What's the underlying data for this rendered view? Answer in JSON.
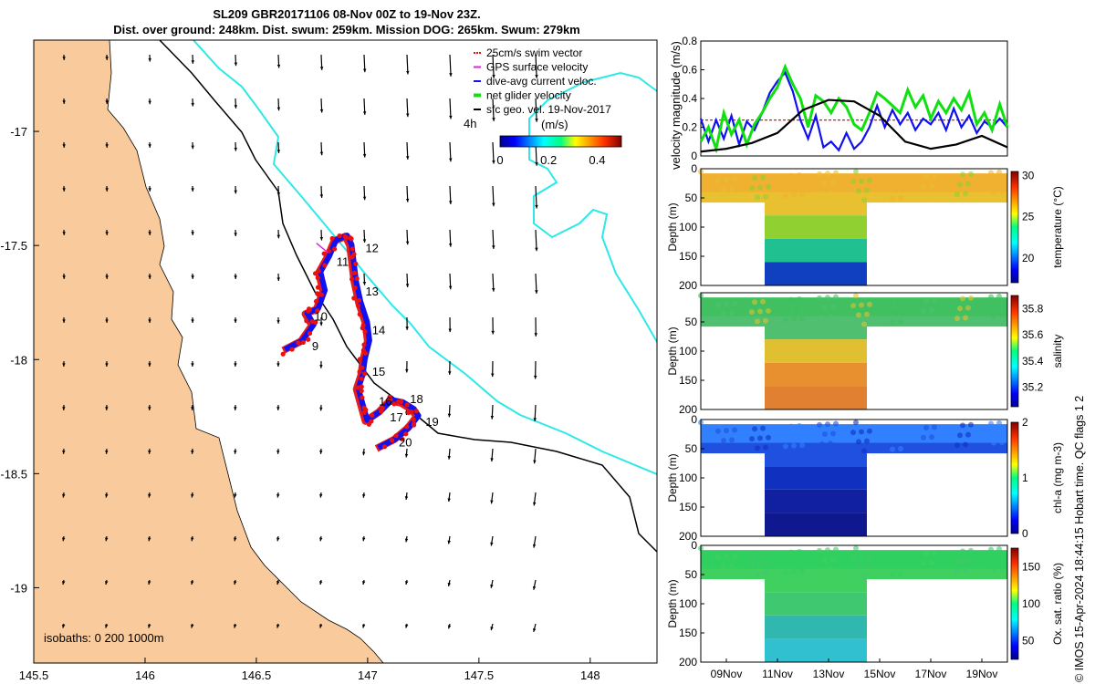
{
  "title_line1": "SL209 GBR20171106 08-Nov 00Z to 19-Nov 23Z.",
  "title_line2": "Dist. over ground: 248km. Dist. swum: 259km. Mission DOG: 265km. Swum: 279km",
  "footnote": "© IMOS 15-Apr-2024 18:44:15 Hobart time. QC flags 1  2",
  "colors": {
    "land": "#f9cb9c",
    "isobath_200": "#000000",
    "isobath_1000": "#2ee8e8",
    "swim_vector": "#e81010",
    "gps_velocity": "#e020e0",
    "current": "#1010f0",
    "net_velocity": "#10e010",
    "geo_velocity": "#000000"
  },
  "legend": {
    "items": [
      {
        "label": "25cm/s swim vector",
        "color": "#e81010"
      },
      {
        "label": "GPS surface velocity",
        "color": "#e020e0"
      },
      {
        "label": "dive-avg current veloc.",
        "color": "#1010f0"
      },
      {
        "label": "net glider velocity",
        "color": "#10e010"
      },
      {
        "label": "sfc geo. vel. 19-Nov-2017",
        "color": "#000000"
      }
    ],
    "time_label": "4h",
    "colorbar_title": "(m/s)",
    "colorbar_ticks": [
      "0",
      "0.2",
      "0.4"
    ]
  },
  "isobaths_label": "isobaths: 0   200  1000m",
  "chart_data": [
    {
      "type": "map",
      "x_ticks": [
        "145.5",
        "146",
        "146.5",
        "147",
        "147.5",
        "148"
      ],
      "y_ticks": [
        "-17",
        "-17.5",
        "-18",
        "-18.5",
        "-19"
      ],
      "xlim": [
        145.5,
        148.3
      ],
      "ylim": [
        -19.33,
        -16.6
      ],
      "day_labels": [
        {
          "label": "9",
          "lon": 146.75,
          "lat": -17.96
        },
        {
          "label": "10",
          "lon": 146.76,
          "lat": -17.83
        },
        {
          "label": "11",
          "lon": 146.86,
          "lat": -17.59
        },
        {
          "label": "12",
          "lon": 146.99,
          "lat": -17.53
        },
        {
          "label": "13",
          "lon": 146.99,
          "lat": -17.72
        },
        {
          "label": "14",
          "lon": 147.02,
          "lat": -17.89
        },
        {
          "label": "15",
          "lon": 147.02,
          "lat": -18.07
        },
        {
          "label": "16",
          "lon": 147.05,
          "lat": -18.2
        },
        {
          "label": "17",
          "lon": 147.1,
          "lat": -18.27
        },
        {
          "label": "18",
          "lon": 147.19,
          "lat": -18.19
        },
        {
          "label": "19",
          "lon": 147.26,
          "lat": -18.29
        },
        {
          "label": "20",
          "lon": 147.14,
          "lat": -18.38
        }
      ],
      "glider_track": [
        [
          146.62,
          -17.96
        ],
        [
          146.7,
          -17.92
        ],
        [
          146.75,
          -17.85
        ],
        [
          146.72,
          -17.8
        ],
        [
          146.77,
          -17.78
        ],
        [
          146.8,
          -17.7
        ],
        [
          146.78,
          -17.62
        ],
        [
          146.82,
          -17.55
        ],
        [
          146.85,
          -17.48
        ],
        [
          146.9,
          -17.46
        ],
        [
          146.92,
          -17.5
        ],
        [
          146.93,
          -17.58
        ],
        [
          146.94,
          -17.66
        ],
        [
          146.96,
          -17.75
        ],
        [
          146.99,
          -17.84
        ],
        [
          147.0,
          -17.92
        ],
        [
          146.98,
          -18.0
        ],
        [
          146.97,
          -18.07
        ],
        [
          146.95,
          -18.13
        ],
        [
          146.97,
          -18.2
        ],
        [
          146.99,
          -18.27
        ],
        [
          147.05,
          -18.23
        ],
        [
          147.1,
          -18.18
        ],
        [
          147.15,
          -18.19
        ],
        [
          147.2,
          -18.22
        ],
        [
          147.22,
          -18.25
        ],
        [
          147.18,
          -18.3
        ],
        [
          147.12,
          -18.35
        ],
        [
          147.04,
          -18.39
        ]
      ]
    },
    {
      "type": "line",
      "ylabel": "velocity magnitude (m/s)",
      "ylim": [
        0,
        0.8
      ],
      "y_ticks": [
        "0",
        "0.2",
        "0.4",
        "0.6",
        "0.8"
      ],
      "xlim": [
        8,
        20
      ],
      "series": [
        {
          "name": "dive-avg current veloc.",
          "color": "#1010f0",
          "x": [
            8.0,
            8.3,
            8.6,
            8.9,
            9.2,
            9.5,
            9.8,
            10.1,
            10.4,
            10.7,
            11.0,
            11.3,
            11.6,
            11.9,
            12.2,
            12.5,
            12.8,
            13.1,
            13.4,
            13.7,
            14.0,
            14.3,
            14.6,
            14.9,
            15.2,
            15.5,
            15.8,
            16.1,
            16.4,
            16.7,
            17.0,
            17.3,
            17.6,
            17.9,
            18.2,
            18.5,
            18.8,
            19.1,
            19.4,
            19.7,
            20.0
          ],
          "y": [
            0.26,
            0.1,
            0.25,
            0.12,
            0.28,
            0.08,
            0.24,
            0.18,
            0.3,
            0.44,
            0.52,
            0.58,
            0.45,
            0.25,
            0.12,
            0.28,
            0.06,
            0.1,
            0.04,
            0.16,
            0.05,
            0.1,
            0.2,
            0.35,
            0.2,
            0.32,
            0.22,
            0.3,
            0.18,
            0.26,
            0.22,
            0.3,
            0.18,
            0.33,
            0.2,
            0.28,
            0.16,
            0.24,
            0.2,
            0.26,
            0.2
          ]
        },
        {
          "name": "net glider velocity",
          "color": "#10e010",
          "x": [
            8.0,
            8.3,
            8.6,
            8.9,
            9.2,
            9.5,
            9.8,
            10.1,
            10.4,
            10.7,
            11.0,
            11.3,
            11.6,
            11.9,
            12.2,
            12.5,
            12.8,
            13.1,
            13.4,
            13.7,
            14.0,
            14.3,
            14.6,
            14.9,
            15.2,
            15.5,
            15.8,
            16.1,
            16.4,
            16.7,
            17.0,
            17.3,
            17.6,
            17.9,
            18.2,
            18.5,
            18.8,
            19.1,
            19.4,
            19.7,
            20.0
          ],
          "y": [
            0.1,
            0.2,
            0.05,
            0.3,
            0.15,
            0.25,
            0.08,
            0.22,
            0.3,
            0.4,
            0.48,
            0.62,
            0.5,
            0.4,
            0.2,
            0.42,
            0.38,
            0.3,
            0.4,
            0.34,
            0.22,
            0.18,
            0.3,
            0.44,
            0.4,
            0.35,
            0.3,
            0.46,
            0.34,
            0.42,
            0.26,
            0.38,
            0.3,
            0.4,
            0.32,
            0.44,
            0.22,
            0.3,
            0.18,
            0.36,
            0.2
          ]
        },
        {
          "name": "sfc geo. vel. 19-Nov-2017",
          "color": "#000000",
          "x": [
            8,
            9,
            10,
            11,
            12,
            13,
            14,
            15,
            16,
            17,
            18,
            19,
            20
          ],
          "y": [
            0.03,
            0.05,
            0.09,
            0.16,
            0.32,
            0.39,
            0.38,
            0.28,
            0.1,
            0.05,
            0.08,
            0.14,
            0.06
          ]
        }
      ]
    },
    {
      "type": "heatmap",
      "ylabel": "Depth (m)",
      "clabel": "temperature (°C)",
      "ylim": [
        200,
        0
      ],
      "y_ticks": [
        "0",
        "50",
        "100",
        "150",
        "200"
      ],
      "c_ticks": [
        "20",
        "25",
        "30"
      ],
      "clim": [
        17,
        30.5
      ]
    },
    {
      "type": "heatmap",
      "ylabel": "Depth (m)",
      "clabel": "salinity",
      "ylim": [
        200,
        0
      ],
      "y_ticks": [
        "50",
        "100",
        "150",
        "200"
      ],
      "c_ticks": [
        "35.2",
        "35.4",
        "35.6",
        "35.8"
      ],
      "clim": [
        35.05,
        35.9
      ]
    },
    {
      "type": "heatmap",
      "ylabel": "Depth (m)",
      "clabel": "chl-a (mg m-3)",
      "ylim": [
        200,
        0
      ],
      "y_ticks": [
        "0",
        "50",
        "100",
        "150",
        "200"
      ],
      "c_ticks": [
        "0",
        "1",
        "2"
      ],
      "clim": [
        0,
        2
      ]
    },
    {
      "type": "heatmap",
      "ylabel": "Depth (m)",
      "clabel": "Ox. sat. ratio (%)",
      "ylim": [
        200,
        0
      ],
      "y_ticks": [
        "0",
        "50",
        "100",
        "150",
        "200"
      ],
      "c_ticks": [
        "50",
        "100",
        "150"
      ],
      "clim": [
        25,
        175
      ]
    }
  ],
  "time_ticks": [
    "09Nov",
    "11Nov",
    "13Nov",
    "15Nov",
    "17Nov",
    "19Nov"
  ]
}
